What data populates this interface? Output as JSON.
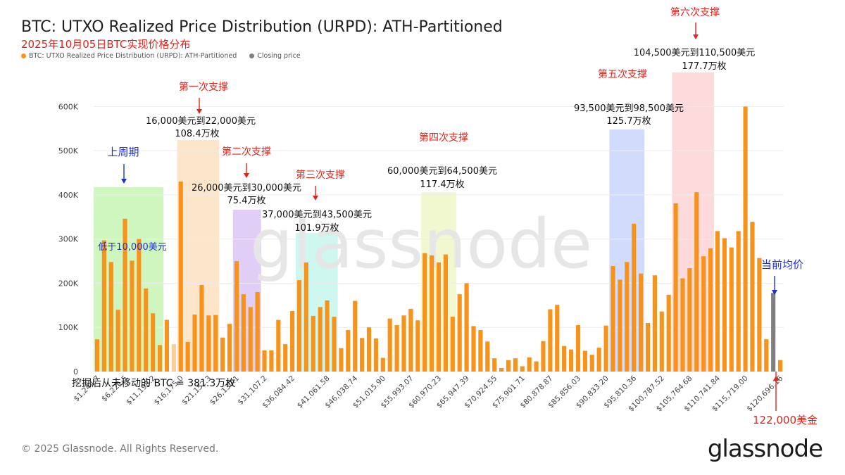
{
  "title": "BTC: UTXO Realized Price Distribution (URPD): ATH-Partitioned",
  "subtitle": "2025年10月05日BTC实现价格分布",
  "legend": {
    "series1": "BTC: UTXO Realized Price Distribution (URPD): ATH-Partitioned",
    "series2": "Closing price"
  },
  "footer": "© 2025 Glassnode. All Rights Reserved.",
  "logo": "glassnode",
  "watermark": "glassnode",
  "colors": {
    "bar": "#f7931a",
    "closing": "#808080",
    "annotation_red": "#e0241b",
    "annotation_blue": "#1f2fd6"
  },
  "chart_data": {
    "type": "bar",
    "ylim": [
      0,
      650000
    ],
    "yticks": [
      "0",
      "100K",
      "200K",
      "300K",
      "400K",
      "500K",
      "600K"
    ],
    "ytick_values": [
      0,
      100000,
      200000,
      300000,
      400000,
      500000,
      600000
    ],
    "xtick_labels": [
      "$1,244.7",
      "$6,221.5",
      "$11,198.2",
      "$16,175.0",
      "$21,152.3",
      "$26,130.1",
      "$31,107.2",
      "$36,084.42",
      "$41,061.58",
      "$46,038.74",
      "$51,015.90",
      "$55,993.07",
      "$60,970.23",
      "$65,947.39",
      "$70,924.55",
      "$75,901.71",
      "$80,878.87",
      "$85,856.03",
      "$90,833.20",
      "$95,810.36",
      "$100,787.52",
      "$105,764.68",
      "$110,741.84",
      "$115,719.00",
      "$120,696.16"
    ],
    "values": [
      73000,
      297000,
      248000,
      140000,
      346000,
      251000,
      300000,
      188000,
      132000,
      60000,
      117000,
      62000,
      430000,
      67000,
      129000,
      196000,
      127000,
      128000,
      77000,
      108000,
      250000,
      175000,
      146000,
      180000,
      48000,
      48000,
      117000,
      62000,
      137000,
      207000,
      247000,
      126000,
      146000,
      161000,
      124000,
      53000,
      94000,
      160000,
      76000,
      100000,
      75000,
      31000,
      120000,
      105000,
      127000,
      142000,
      116000,
      268000,
      263000,
      247000,
      265000,
      124000,
      175000,
      200000,
      103000,
      94000,
      68000,
      30000,
      8000,
      26000,
      30000,
      12000,
      32000,
      23000,
      69000,
      141000,
      151000,
      58000,
      50000,
      105000,
      47000,
      38000,
      54000,
      104000,
      239000,
      208000,
      248000,
      335000,
      222000,
      110000,
      218000,
      136000,
      174000,
      381000,
      211000,
      234000,
      406000,
      261000,
      279000,
      318000,
      302000,
      281000,
      318000,
      600000,
      339000,
      257000,
      73000,
      178000,
      26000
    ],
    "faded_bar_index": 11,
    "closing_price_bar_index": 97,
    "closing_price_value": 178000
  },
  "annotations": {
    "prev_cycle": "上周期",
    "below_10k": "低于10,000美元",
    "s1_title": "第一次支撑",
    "s1_range": "16,000美元到22,000美元",
    "s1_amount": "108.4万枚",
    "s2_title": "第二次支撑",
    "s2_range": "26,000美元到30,000美元",
    "s2_amount": "75.4万枚",
    "s3_title": "第三次支撑",
    "s3_range": "37,000美元到43,500美元",
    "s3_amount": "101.9万枚",
    "s4_title": "第四次支撑",
    "s4_range": "60,000美元到64,500美元",
    "s4_amount": "117.4万枚",
    "s5_title": "第五次支撑",
    "s5_range": "93,500美元到98,500美元",
    "s5_amount": "125.7万枚",
    "s6_title": "第六次支撑",
    "s6_range": "104,500美元到110,500美元",
    "s6_amount": "177.7万枚",
    "current_avg": "当前均价",
    "price_122k": "122,000美金",
    "unmoved": "挖掘后从未移动的 BTC = 381.3万枚"
  }
}
